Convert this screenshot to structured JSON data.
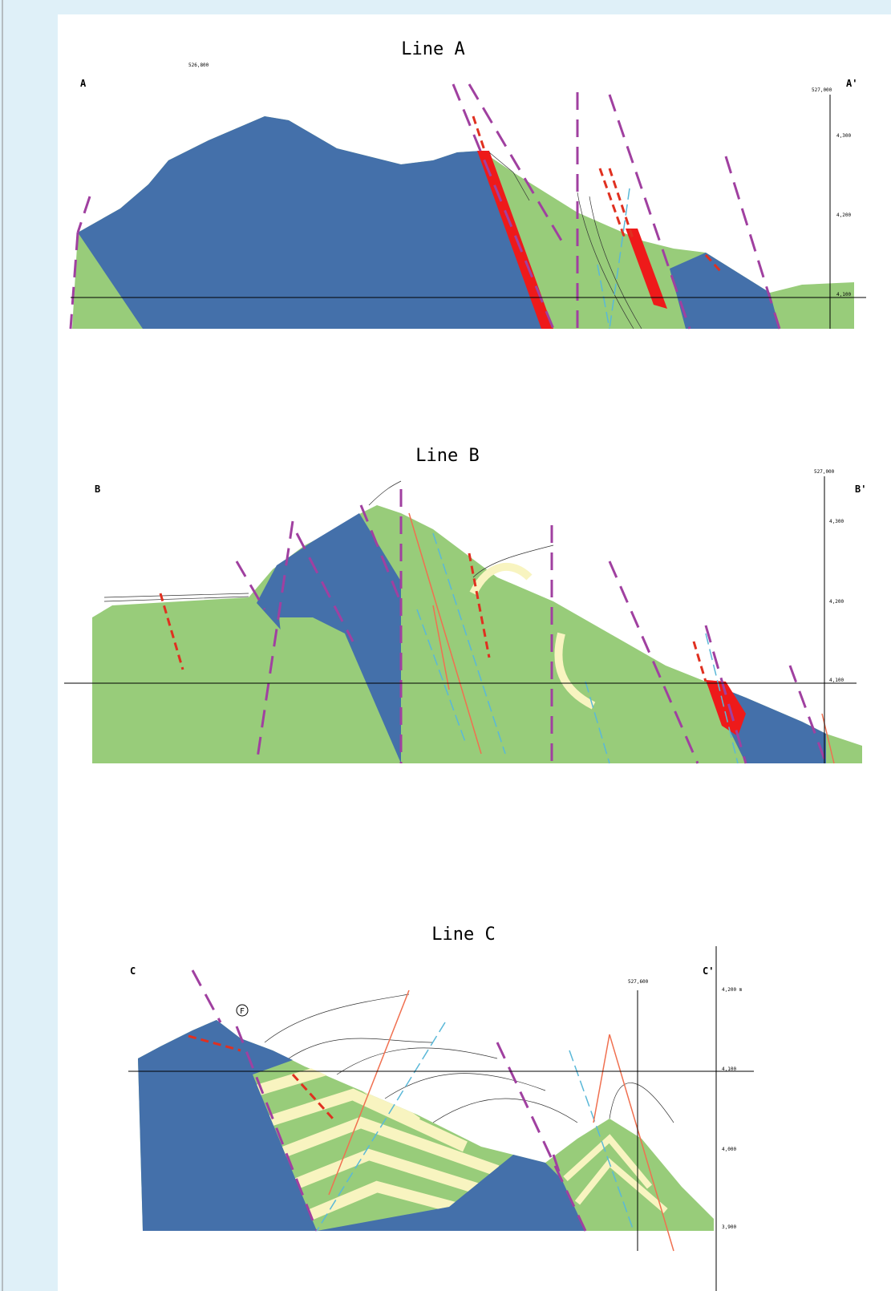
{
  "sections": [
    {
      "title": "Line A",
      "start_label": "A",
      "end_label": "A'",
      "easting_left": "526,800",
      "easting_right": "527,000",
      "elevations": [
        "4,300",
        "4,200",
        "4,100"
      ]
    },
    {
      "title": "Line B",
      "start_label": "B",
      "end_label": "B'",
      "easting_right": "527,000",
      "elevations": [
        "4,300",
        "4,200",
        "4,100"
      ]
    },
    {
      "title": "Line C",
      "start_label": "C",
      "end_label": "C'",
      "easting_right": "527,600",
      "elevations": [
        "4,200 m",
        "4,100",
        "4,000",
        "3,900"
      ],
      "fault_marker": "F"
    }
  ]
}
